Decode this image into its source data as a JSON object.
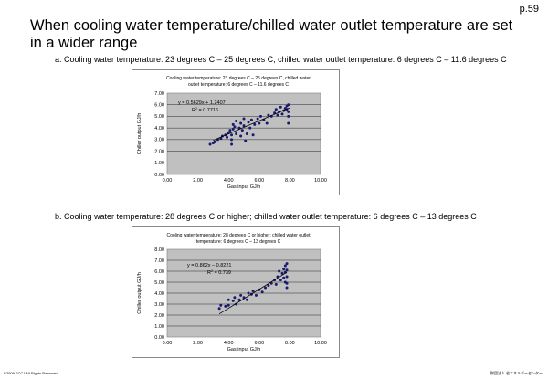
{
  "page": {
    "number": "p.59",
    "title": "When cooling water temperature/chilled water outlet temperature are set in a wider range",
    "subtitle_a": "a: Cooling water temperature: 23 degrees C – 25 degrees C, chilled water outlet temperature: 6 degrees C – 11.6 degrees C",
    "subtitle_b": "b. Cooling water temperature: 28 degrees C or higher; chilled water outlet temperature: 6 degrees C – 13 degrees C",
    "footer_copyright": "©2009 ECCJ All Rights Reserved",
    "footer_org": "財団法人 省エネルギーセンター"
  },
  "chart_data": [
    {
      "type": "scatter",
      "title_line1": "Cooling water temperature: 23 degrees C – 25 degrees C, chilled water",
      "title_line2": "outlet temperature: 6 degrees C – 11.6 degrees C",
      "xlabel": "Gas input GJ/h",
      "ylabel": "Chiller output GJ/h",
      "xlim": [
        0,
        10
      ],
      "ylim": [
        0,
        7
      ],
      "xticks": [
        "0.00",
        "2.00",
        "4.00",
        "6.00",
        "8.00",
        "10.00"
      ],
      "yticks": [
        "0.00",
        "1.00",
        "2.00",
        "3.00",
        "4.00",
        "5.00",
        "6.00",
        "7.00"
      ],
      "grid": true,
      "trendline": {
        "slope": 0.5629,
        "intercept": 1.2407,
        "x_range": [
          3.0,
          8.0
        ]
      },
      "equation": "y = 0.5629x + 1.2407",
      "r2_label": "R",
      "r2_value": " = 0.7716",
      "points": [
        [
          2.8,
          2.6
        ],
        [
          3.0,
          2.7
        ],
        [
          3.1,
          2.8
        ],
        [
          3.3,
          3.0
        ],
        [
          3.5,
          3.1
        ],
        [
          3.6,
          3.3
        ],
        [
          3.8,
          3.4
        ],
        [
          3.9,
          3.2
        ],
        [
          4.0,
          3.6
        ],
        [
          4.1,
          3.8
        ],
        [
          4.2,
          2.6
        ],
        [
          4.2,
          3.0
        ],
        [
          4.2,
          3.4
        ],
        [
          4.3,
          3.9
        ],
        [
          4.3,
          4.3
        ],
        [
          4.4,
          4.1
        ],
        [
          4.5,
          3.5
        ],
        [
          4.5,
          4.6
        ],
        [
          4.7,
          4.0
        ],
        [
          4.8,
          3.3
        ],
        [
          4.8,
          4.4
        ],
        [
          4.9,
          3.8
        ],
        [
          5.0,
          4.2
        ],
        [
          5.0,
          4.8
        ],
        [
          5.1,
          2.9
        ],
        [
          5.2,
          3.5
        ],
        [
          5.3,
          4.5
        ],
        [
          5.4,
          4.0
        ],
        [
          5.5,
          4.7
        ],
        [
          5.6,
          3.4
        ],
        [
          5.7,
          4.3
        ],
        [
          5.9,
          4.8
        ],
        [
          6.0,
          4.4
        ],
        [
          6.1,
          5.0
        ],
        [
          6.3,
          4.7
        ],
        [
          6.5,
          4.4
        ],
        [
          6.6,
          5.1
        ],
        [
          6.8,
          5.0
        ],
        [
          7.0,
          5.3
        ],
        [
          7.1,
          5.6
        ],
        [
          7.2,
          5.1
        ],
        [
          7.3,
          5.4
        ],
        [
          7.4,
          5.8
        ],
        [
          7.5,
          5.2
        ],
        [
          7.6,
          5.5
        ],
        [
          7.7,
          5.7
        ],
        [
          7.8,
          5.9
        ],
        [
          7.9,
          5.0
        ],
        [
          7.9,
          4.4
        ],
        [
          7.9,
          6.0
        ],
        [
          7.9,
          5.4
        ],
        [
          7.8,
          5.6
        ]
      ]
    },
    {
      "type": "scatter",
      "title_line1": "Cooling water temperature: 28 degrees C or higher; chilled water outlet",
      "title_line2": "temperature: 6 degrees C – 13 degrees C",
      "xlabel": "Gas input GJ/h",
      "ylabel": "Chiller output GJ/h",
      "xlim": [
        0,
        10
      ],
      "ylim": [
        0,
        8
      ],
      "xticks": [
        "0.00",
        "2.00",
        "4.00",
        "6.00",
        "8.00",
        "10.00"
      ],
      "yticks": [
        "0.00",
        "1.00",
        "2.00",
        "3.00",
        "4.00",
        "5.00",
        "6.00",
        "7.00",
        "8.00"
      ],
      "grid": true,
      "trendline": {
        "slope": 0.862,
        "intercept": -0.8221,
        "x_range": [
          3.4,
          7.8
        ]
      },
      "equation": "y = 0.862x – 0.8221",
      "r2_label": "R",
      "r2_value": " = 0.739",
      "points": [
        [
          3.4,
          2.6
        ],
        [
          3.5,
          2.9
        ],
        [
          3.8,
          2.8
        ],
        [
          4.0,
          2.9
        ],
        [
          4.0,
          3.4
        ],
        [
          4.3,
          3.3
        ],
        [
          4.4,
          3.6
        ],
        [
          4.5,
          3.0
        ],
        [
          4.7,
          3.4
        ],
        [
          4.8,
          3.8
        ],
        [
          5.0,
          3.6
        ],
        [
          5.2,
          3.4
        ],
        [
          5.3,
          4.0
        ],
        [
          5.5,
          3.9
        ],
        [
          5.6,
          4.2
        ],
        [
          5.8,
          3.8
        ],
        [
          6.0,
          4.3
        ],
        [
          6.2,
          4.1
        ],
        [
          6.4,
          4.5
        ],
        [
          6.6,
          4.7
        ],
        [
          6.8,
          4.9
        ],
        [
          7.0,
          5.2
        ],
        [
          7.1,
          4.8
        ],
        [
          7.2,
          5.5
        ],
        [
          7.3,
          6.0
        ],
        [
          7.4,
          5.2
        ],
        [
          7.5,
          5.8
        ],
        [
          7.6,
          6.2
        ],
        [
          7.7,
          5.0
        ],
        [
          7.7,
          6.5
        ],
        [
          7.8,
          4.5
        ],
        [
          7.8,
          5.5
        ],
        [
          7.8,
          6.7
        ],
        [
          7.8,
          4.9
        ],
        [
          7.7,
          5.9
        ],
        [
          7.6,
          5.4
        ],
        [
          7.8,
          6.1
        ]
      ]
    }
  ]
}
